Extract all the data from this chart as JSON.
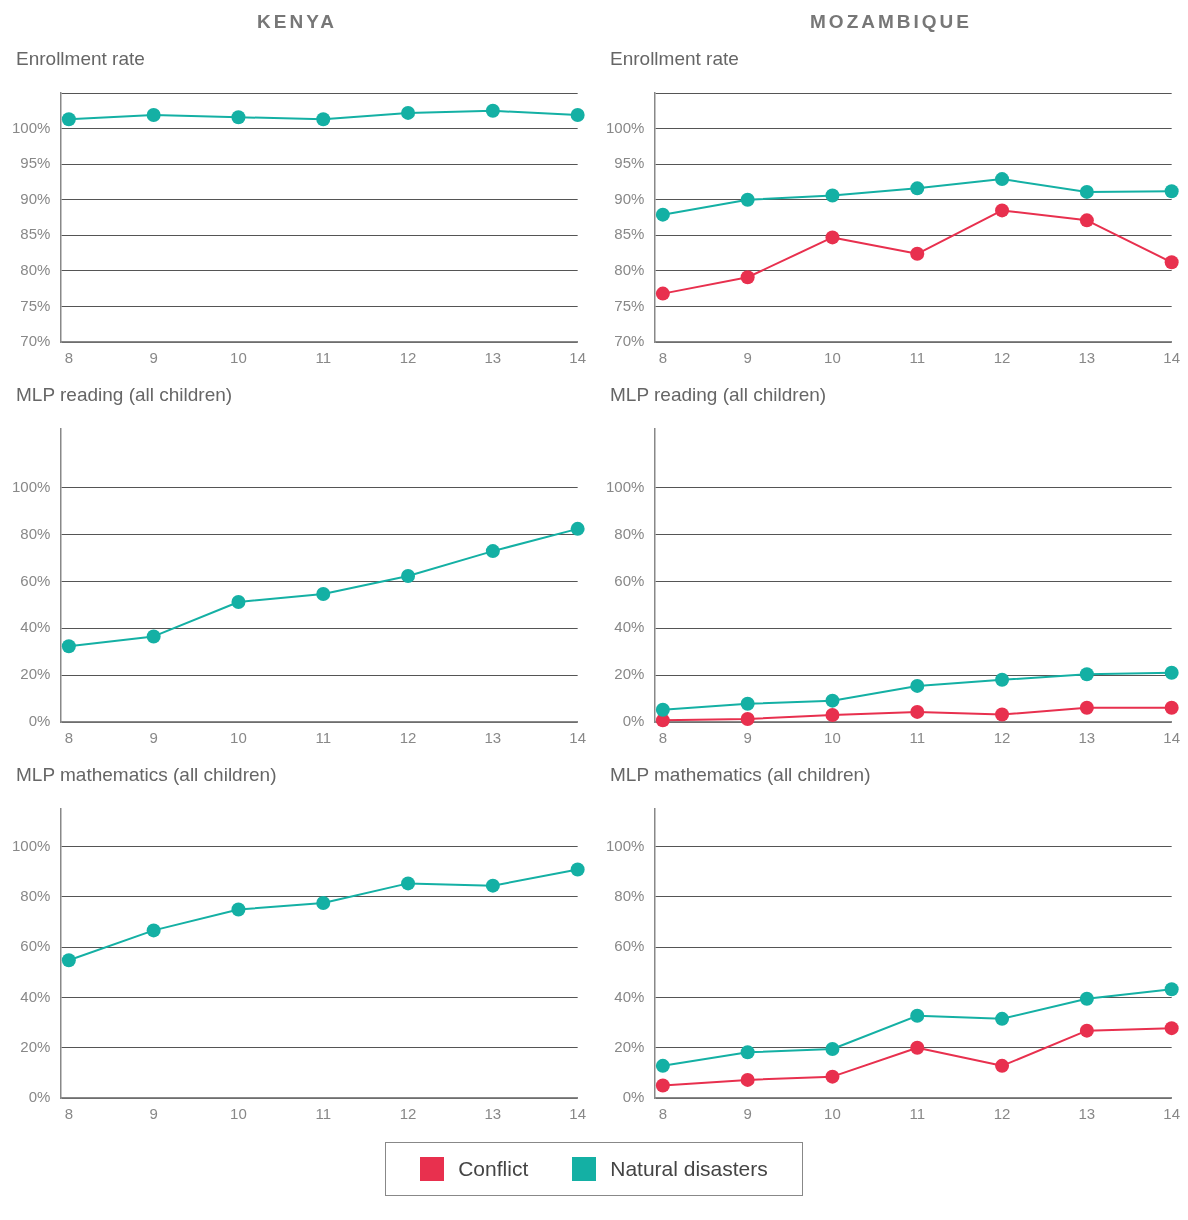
{
  "chart_data": [
    {
      "type": "line",
      "subtitle": "KENYA",
      "title": "Enrollment rate",
      "x": [
        8,
        9,
        10,
        11,
        12,
        13,
        14
      ],
      "xlim": [
        7.9,
        14
      ],
      "xticks": [
        8,
        9,
        10,
        11,
        12,
        13,
        14
      ],
      "ylim": [
        70,
        105
      ],
      "yticks": [
        {
          "value": 70,
          "label": "70%"
        },
        {
          "value": 75,
          "label": "75%"
        },
        {
          "value": 80,
          "label": "80%"
        },
        {
          "value": 85,
          "label": "85%"
        },
        {
          "value": 90,
          "label": "90%"
        },
        {
          "value": 95,
          "label": "95%"
        },
        {
          "value": 100,
          "label": "100%"
        },
        {
          "value": 105,
          "label": null
        }
      ],
      "grid": "y",
      "marker": "circle",
      "series": [
        {
          "name": "Natural disasters",
          "color": "#14b0a4",
          "values": [
            101.3,
            101.9,
            101.6,
            101.3,
            102.2,
            102.5,
            101.9
          ]
        }
      ]
    },
    {
      "type": "line",
      "subtitle": "MOZAMBIQUE",
      "title": "Enrollment rate",
      "x": [
        8,
        9,
        10,
        11,
        12,
        13,
        14
      ],
      "xlim": [
        7.9,
        14
      ],
      "xticks": [
        8,
        9,
        10,
        11,
        12,
        13,
        14
      ],
      "ylim": [
        70,
        105
      ],
      "yticks": [
        {
          "value": 70,
          "label": "70%"
        },
        {
          "value": 75,
          "label": "75%"
        },
        {
          "value": 80,
          "label": "80%"
        },
        {
          "value": 85,
          "label": "85%"
        },
        {
          "value": 90,
          "label": "90%"
        },
        {
          "value": 95,
          "label": "95%"
        },
        {
          "value": 100,
          "label": "100%"
        },
        {
          "value": 105,
          "label": null
        }
      ],
      "grid": "y",
      "marker": "circle",
      "series": [
        {
          "name": "Natural disasters",
          "color": "#14b0a4",
          "values": [
            87.9,
            90.0,
            90.6,
            91.6,
            92.9,
            91.1,
            91.2
          ]
        },
        {
          "name": "Conflict",
          "color": "#e8304e",
          "values": [
            76.8,
            79.1,
            84.7,
            82.4,
            88.5,
            87.1,
            81.2
          ]
        }
      ]
    },
    {
      "type": "line",
      "title": "MLP reading (all children)",
      "x": [
        8,
        9,
        10,
        11,
        12,
        13,
        14
      ],
      "xlim": [
        7.9,
        14
      ],
      "xticks": [
        8,
        9,
        10,
        11,
        12,
        13,
        14
      ],
      "ylim": [
        0,
        125
      ],
      "yticks": [
        {
          "value": 0,
          "label": "0%"
        },
        {
          "value": 20,
          "label": "20%"
        },
        {
          "value": 40,
          "label": "40%"
        },
        {
          "value": 60,
          "label": "60%"
        },
        {
          "value": 80,
          "label": "80%"
        },
        {
          "value": 100,
          "label": "100%"
        }
      ],
      "grid": "y",
      "marker": "circle",
      "series": [
        {
          "name": "Natural disasters",
          "color": "#14b0a4",
          "values": [
            32.3,
            36.5,
            51.2,
            54.6,
            62.3,
            72.9,
            82.4
          ]
        }
      ]
    },
    {
      "type": "line",
      "title": "MLP reading (all children)",
      "x": [
        8,
        9,
        10,
        11,
        12,
        13,
        14
      ],
      "xlim": [
        7.9,
        14
      ],
      "xticks": [
        8,
        9,
        10,
        11,
        12,
        13,
        14
      ],
      "ylim": [
        0,
        125
      ],
      "yticks": [
        {
          "value": 0,
          "label": "0%"
        },
        {
          "value": 20,
          "label": "20%"
        },
        {
          "value": 40,
          "label": "40%"
        },
        {
          "value": 60,
          "label": "60%"
        },
        {
          "value": 80,
          "label": "80%"
        },
        {
          "value": 100,
          "label": "100%"
        }
      ],
      "grid": "y",
      "marker": "circle",
      "series": [
        {
          "name": "Natural disasters",
          "color": "#14b0a4",
          "values": [
            5.2,
            7.8,
            9.1,
            15.4,
            18.0,
            20.4,
            21.0
          ]
        },
        {
          "name": "Conflict",
          "color": "#e8304e",
          "values": [
            0.7,
            1.3,
            3.0,
            4.3,
            3.2,
            6.1,
            6.1
          ]
        }
      ]
    },
    {
      "type": "line",
      "title": "MLP mathematics (all children)",
      "x": [
        8,
        9,
        10,
        11,
        12,
        13,
        14
      ],
      "xlim": [
        7.9,
        14
      ],
      "xticks": [
        8,
        9,
        10,
        11,
        12,
        13,
        14
      ],
      "ylim": [
        0,
        115
      ],
      "yticks": [
        {
          "value": 0,
          "label": "0%"
        },
        {
          "value": 20,
          "label": "20%"
        },
        {
          "value": 40,
          "label": "40%"
        },
        {
          "value": 60,
          "label": "60%"
        },
        {
          "value": 80,
          "label": "80%"
        },
        {
          "value": 100,
          "label": "100%"
        }
      ],
      "grid": "y",
      "marker": "circle",
      "series": [
        {
          "name": "Natural disasters",
          "color": "#14b0a4",
          "values": [
            54.8,
            66.7,
            75.0,
            77.6,
            85.4,
            84.5,
            90.9
          ]
        }
      ]
    },
    {
      "type": "line",
      "title": "MLP mathematics (all children)",
      "x": [
        8,
        9,
        10,
        11,
        12,
        13,
        14
      ],
      "xlim": [
        7.9,
        14
      ],
      "xticks": [
        8,
        9,
        10,
        11,
        12,
        13,
        14
      ],
      "ylim": [
        0,
        115
      ],
      "yticks": [
        {
          "value": 0,
          "label": "0%"
        },
        {
          "value": 20,
          "label": "20%"
        },
        {
          "value": 40,
          "label": "40%"
        },
        {
          "value": 60,
          "label": "60%"
        },
        {
          "value": 80,
          "label": "80%"
        },
        {
          "value": 100,
          "label": "100%"
        }
      ],
      "grid": "y",
      "marker": "circle",
      "legend": "bottom",
      "series": [
        {
          "name": "Conflict",
          "color": "#e8304e",
          "values": [
            5.0,
            7.2,
            8.5,
            20.0,
            12.8,
            26.8,
            27.8
          ]
        },
        {
          "name": "Natural disasters",
          "color": "#14b0a4",
          "values": [
            12.8,
            18.2,
            19.5,
            32.7,
            31.5,
            39.5,
            43.3
          ]
        }
      ]
    }
  ]
}
